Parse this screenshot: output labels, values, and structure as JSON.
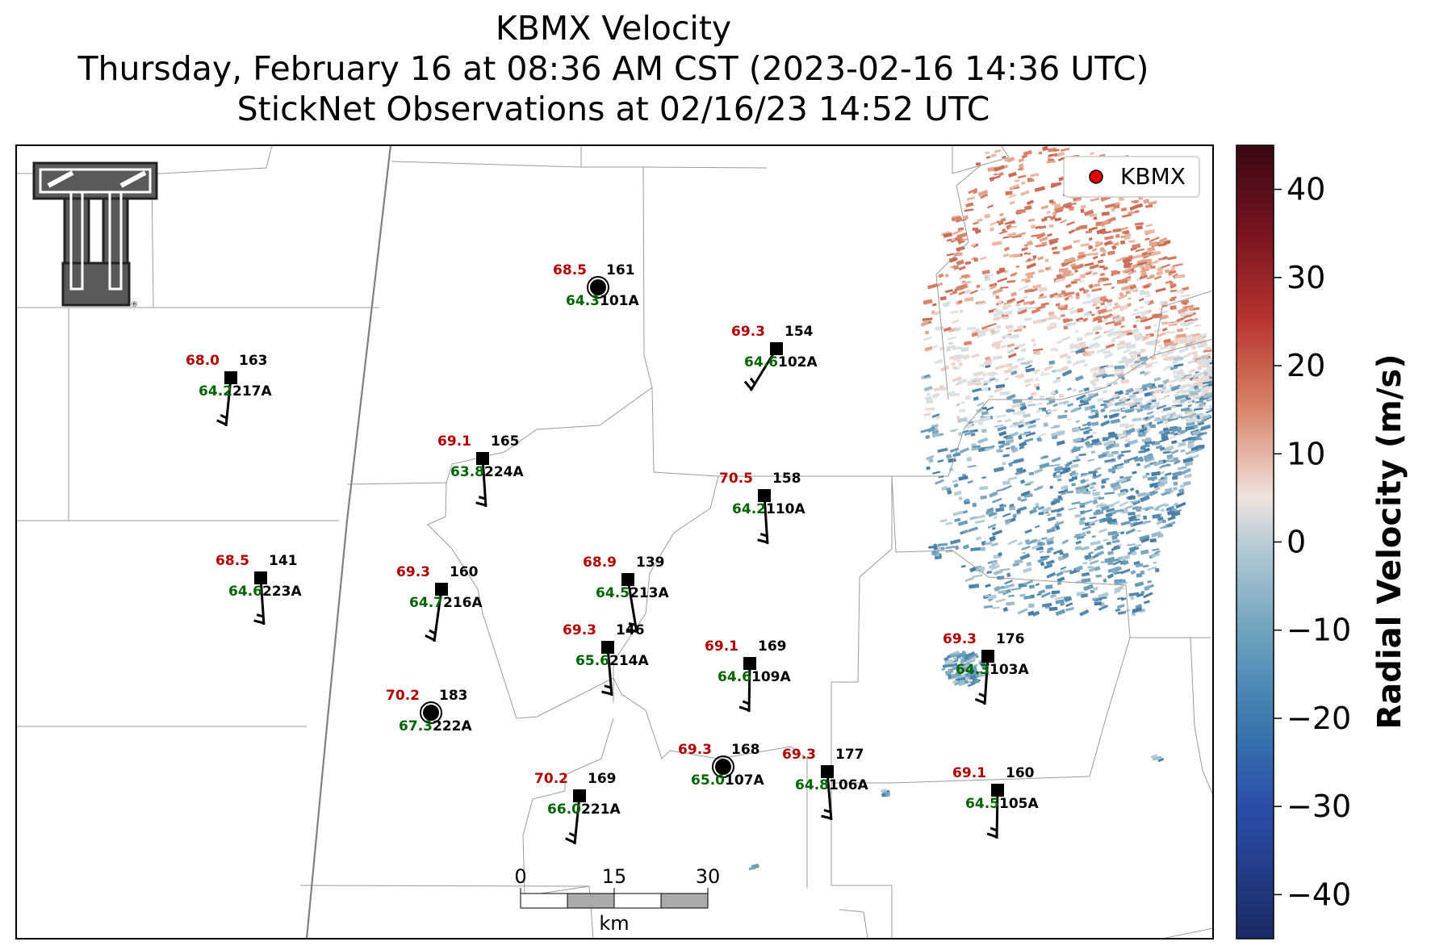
{
  "title": {
    "line1": "KBMX Velocity",
    "line2": "Thursday, February 16 at 08:36 AM CST (2023-02-16 14:36 UTC)",
    "line3": "StickNet Observations at 02/16/23 14:52 UTC"
  },
  "legend": {
    "label": "KBMX",
    "marker_color": "#e00000"
  },
  "colorbar": {
    "label": "Radial Velocity (m/s)",
    "min": -45,
    "max": 45,
    "ticks": [
      "40",
      "30",
      "20",
      "10",
      "0",
      "−10",
      "−20",
      "−30",
      "−40"
    ],
    "colors": [
      "#3a0a12",
      "#7a1422",
      "#b8362e",
      "#d9846a",
      "#efe3de",
      "#b9ccd6",
      "#6fa3bd",
      "#3c7bb0",
      "#2a4fa8",
      "#1c2a66"
    ]
  },
  "scale_bar": {
    "unit": "km",
    "labels": [
      "0",
      "15",
      "30"
    ]
  },
  "logo": {
    "name": "Texas Tech double-T logo"
  },
  "stations": [
    {
      "id": "101A",
      "temp": "68.5",
      "dew": "64.3",
      "dir": "161",
      "marker": "calm"
    },
    {
      "id": "102A",
      "temp": "69.3",
      "dew": "64.6",
      "dir": "154",
      "marker": "square"
    },
    {
      "id": "217A",
      "temp": "68.0",
      "dew": "64.2",
      "dir": "163",
      "marker": "square"
    },
    {
      "id": "224A",
      "temp": "69.1",
      "dew": "63.8",
      "dir": "165",
      "marker": "square"
    },
    {
      "id": "110A",
      "temp": "70.5",
      "dew": "64.2",
      "dir": "158",
      "marker": "square"
    },
    {
      "id": "223A",
      "temp": "68.5",
      "dew": "64.6",
      "dir": "141",
      "marker": "square"
    },
    {
      "id": "216A",
      "temp": "69.3",
      "dew": "64.7",
      "dir": "160",
      "marker": "square"
    },
    {
      "id": "213A",
      "temp": "68.9",
      "dew": "64.5",
      "dir": "139",
      "marker": "square"
    },
    {
      "id": "214A",
      "temp": "69.3",
      "dew": "65.6",
      "dir": "146",
      "marker": "square"
    },
    {
      "id": "109A",
      "temp": "69.1",
      "dew": "64.6",
      "dir": "169",
      "marker": "square"
    },
    {
      "id": "103A",
      "temp": "69.3",
      "dew": "64.3",
      "dir": "176",
      "marker": "square"
    },
    {
      "id": "222A",
      "temp": "70.2",
      "dew": "67.3",
      "dir": "183",
      "marker": "calm"
    },
    {
      "id": "107A",
      "temp": "69.3",
      "dew": "65.0",
      "dir": "168",
      "marker": "calm"
    },
    {
      "id": "106A",
      "temp": "69.3",
      "dew": "64.8",
      "dir": "177",
      "marker": "square"
    },
    {
      "id": "105A",
      "temp": "69.1",
      "dew": "64.5",
      "dir": "160",
      "marker": "square"
    },
    {
      "id": "221A",
      "temp": "70.2",
      "dew": "66.0",
      "dir": "169",
      "marker": "square"
    }
  ]
}
